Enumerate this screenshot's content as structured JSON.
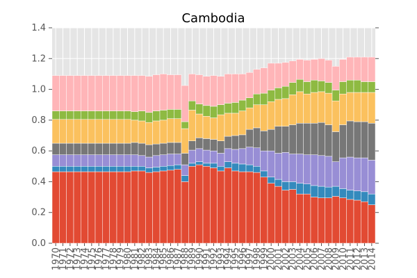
{
  "chart_data": {
    "type": "bar",
    "stacked": true,
    "title": "Cambodia",
    "xlabel": "",
    "ylabel": "",
    "ylim": [
      0,
      1.4
    ],
    "y_ticks": [
      "0.0",
      "0.2",
      "0.4",
      "0.6",
      "0.8",
      "1.0",
      "1.2",
      "1.4"
    ],
    "grid": true,
    "legend": "none",
    "categories": [
      "1970",
      "1971",
      "1972",
      "1973",
      "1974",
      "1975",
      "1976",
      "1977",
      "1978",
      "1979",
      "1980",
      "1981",
      "1982",
      "1983",
      "1984",
      "1985",
      "1986",
      "1987",
      "1988",
      "1989",
      "1990",
      "1991",
      "1992",
      "1993",
      "1994",
      "1995",
      "1996",
      "1997",
      "1998",
      "1999",
      "2000",
      "2001",
      "2002",
      "2003",
      "2004",
      "2005",
      "2006",
      "2007",
      "2008",
      "2009",
      "2010",
      "2011",
      "2012",
      "2013",
      "2014"
    ],
    "series": [
      {
        "color": "#E24A33",
        "values": [
          0.465,
          0.465,
          0.465,
          0.465,
          0.465,
          0.465,
          0.465,
          0.465,
          0.465,
          0.465,
          0.465,
          0.47,
          0.47,
          0.46,
          0.465,
          0.47,
          0.475,
          0.48,
          0.4,
          0.5,
          0.51,
          0.5,
          0.49,
          0.47,
          0.49,
          0.47,
          0.465,
          0.465,
          0.46,
          0.43,
          0.39,
          0.37,
          0.345,
          0.35,
          0.32,
          0.32,
          0.3,
          0.295,
          0.295,
          0.305,
          0.295,
          0.285,
          0.28,
          0.27,
          0.25
        ]
      },
      {
        "color": "#348ABD",
        "values": [
          0.035,
          0.035,
          0.035,
          0.035,
          0.035,
          0.035,
          0.035,
          0.035,
          0.035,
          0.035,
          0.035,
          0.03,
          0.03,
          0.03,
          0.03,
          0.03,
          0.03,
          0.03,
          0.04,
          0.02,
          0.02,
          0.02,
          0.03,
          0.03,
          0.04,
          0.05,
          0.05,
          0.045,
          0.04,
          0.04,
          0.04,
          0.045,
          0.055,
          0.05,
          0.07,
          0.065,
          0.075,
          0.075,
          0.07,
          0.065,
          0.06,
          0.06,
          0.06,
          0.065,
          0.07
        ]
      },
      {
        "color": "#988ED5",
        "values": [
          0.075,
          0.075,
          0.075,
          0.075,
          0.075,
          0.075,
          0.075,
          0.075,
          0.075,
          0.075,
          0.075,
          0.075,
          0.07,
          0.07,
          0.075,
          0.075,
          0.075,
          0.07,
          0.07,
          0.085,
          0.085,
          0.085,
          0.08,
          0.085,
          0.085,
          0.09,
          0.1,
          0.115,
          0.12,
          0.13,
          0.17,
          0.17,
          0.19,
          0.18,
          0.19,
          0.19,
          0.2,
          0.2,
          0.2,
          0.16,
          0.2,
          0.215,
          0.215,
          0.22,
          0.22
        ]
      },
      {
        "color": "#777777",
        "values": [
          0.075,
          0.075,
          0.075,
          0.075,
          0.075,
          0.075,
          0.075,
          0.075,
          0.075,
          0.075,
          0.075,
          0.08,
          0.08,
          0.08,
          0.075,
          0.075,
          0.075,
          0.075,
          0.075,
          0.06,
          0.07,
          0.075,
          0.075,
          0.08,
          0.08,
          0.09,
          0.09,
          0.115,
          0.13,
          0.13,
          0.14,
          0.175,
          0.17,
          0.19,
          0.2,
          0.205,
          0.205,
          0.215,
          0.205,
          0.195,
          0.215,
          0.235,
          0.235,
          0.235,
          0.24
        ]
      },
      {
        "color": "#FBC15E",
        "values": [
          0.155,
          0.155,
          0.155,
          0.155,
          0.155,
          0.155,
          0.155,
          0.155,
          0.155,
          0.155,
          0.155,
          0.145,
          0.145,
          0.145,
          0.15,
          0.15,
          0.155,
          0.155,
          0.16,
          0.2,
          0.155,
          0.145,
          0.14,
          0.17,
          0.15,
          0.145,
          0.155,
          0.14,
          0.15,
          0.17,
          0.18,
          0.175,
          0.18,
          0.195,
          0.205,
          0.19,
          0.2,
          0.2,
          0.205,
          0.2,
          0.2,
          0.185,
          0.19,
          0.19,
          0.2
        ]
      },
      {
        "color": "#8EBA42",
        "values": [
          0.055,
          0.055,
          0.055,
          0.055,
          0.055,
          0.055,
          0.055,
          0.055,
          0.055,
          0.055,
          0.055,
          0.055,
          0.065,
          0.065,
          0.065,
          0.065,
          0.06,
          0.06,
          0.045,
          0.06,
          0.065,
          0.07,
          0.075,
          0.065,
          0.065,
          0.07,
          0.07,
          0.065,
          0.07,
          0.075,
          0.075,
          0.075,
          0.08,
          0.08,
          0.08,
          0.08,
          0.08,
          0.07,
          0.07,
          0.07,
          0.08,
          0.08,
          0.08,
          0.07,
          0.07
        ]
      },
      {
        "color": "#FFB5B8",
        "values": [
          0.23,
          0.23,
          0.23,
          0.23,
          0.23,
          0.23,
          0.23,
          0.23,
          0.23,
          0.23,
          0.23,
          0.235,
          0.23,
          0.235,
          0.235,
          0.235,
          0.225,
          0.225,
          0.235,
          0.175,
          0.19,
          0.19,
          0.2,
          0.185,
          0.19,
          0.185,
          0.17,
          0.165,
          0.16,
          0.165,
          0.175,
          0.16,
          0.155,
          0.14,
          0.13,
          0.14,
          0.135,
          0.145,
          0.145,
          0.155,
          0.145,
          0.15,
          0.15,
          0.16,
          0.16
        ]
      }
    ]
  }
}
